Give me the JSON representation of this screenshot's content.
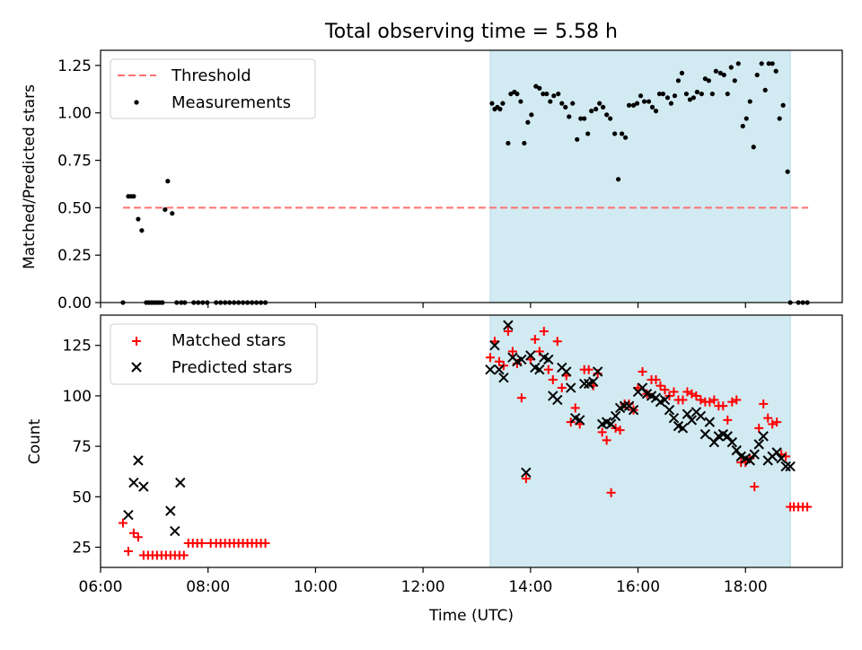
{
  "figure": {
    "title": "Total observing time = 5.58 h",
    "xlabel": "Time (UTC)",
    "highlight_color": "#add8e6"
  },
  "chart_data": [
    {
      "type": "scatter",
      "ylabel": "Matched/Predicted stars",
      "xlim": [
        "06:00",
        "19:48"
      ],
      "ylim": [
        0,
        1.33
      ],
      "grid": false,
      "legend_position": "upper-left",
      "x_ticks": [
        "06:00",
        "08:00",
        "10:00",
        "12:00",
        "14:00",
        "16:00",
        "18:00"
      ],
      "y_ticks": [
        "0.00",
        "0.25",
        "0.50",
        "0.75",
        "1.00",
        "1.25"
      ],
      "shaded_interval": [
        "13:15",
        "18:50"
      ],
      "threshold": {
        "name": "Threshold",
        "value": 0.5,
        "x_range": [
          "06:25",
          "19:10"
        ],
        "color": "#ff7070"
      },
      "series": [
        {
          "name": "Measurements",
          "color": "#000000",
          "x": [
            "06:25",
            "06:31",
            "06:34",
            "06:37",
            "06:42",
            "06:46",
            "06:51",
            "06:54",
            "06:57",
            "07:00",
            "07:03",
            "07:06",
            "07:09",
            "07:12",
            "07:15",
            "07:20",
            "07:25",
            "07:30",
            "07:34",
            "07:44",
            "07:49",
            "07:54",
            "07:59",
            "08:09",
            "08:14",
            "08:19",
            "08:24",
            "08:29",
            "08:34",
            "08:39",
            "08:44",
            "08:49",
            "08:54",
            "08:59",
            "09:04",
            "13:17",
            "13:20",
            "13:23",
            "13:26",
            "13:29",
            "13:35",
            "13:38",
            "13:42",
            "13:45",
            "13:49",
            "13:53",
            "13:57",
            "14:01",
            "14:06",
            "14:10",
            "14:14",
            "14:18",
            "14:22",
            "14:26",
            "14:31",
            "14:35",
            "14:39",
            "14:43",
            "14:47",
            "14:52",
            "14:56",
            "15:00",
            "15:04",
            "15:08",
            "15:13",
            "15:17",
            "15:21",
            "15:25",
            "15:29",
            "15:34",
            "15:38",
            "15:42",
            "15:46",
            "15:50",
            "15:55",
            "15:59",
            "16:03",
            "16:07",
            "16:12",
            "16:16",
            "16:20",
            "16:24",
            "16:28",
            "16:33",
            "16:37",
            "16:41",
            "16:45",
            "16:49",
            "16:54",
            "16:58",
            "17:02",
            "17:06",
            "17:11",
            "17:15",
            "17:19",
            "17:23",
            "17:27",
            "17:32",
            "17:36",
            "17:40",
            "17:44",
            "17:48",
            "17:52",
            "17:57",
            "18:01",
            "18:05",
            "18:09",
            "18:13",
            "18:18",
            "18:22",
            "18:26",
            "18:30",
            "18:34",
            "18:38",
            "18:42",
            "18:47",
            "18:50",
            "18:59",
            "19:04",
            "19:09"
          ],
          "y": [
            0.0,
            0.56,
            0.56,
            0.56,
            0.44,
            0.38,
            0.0,
            0.0,
            0.0,
            0.0,
            0.0,
            0.0,
            0.0,
            0.49,
            0.64,
            0.47,
            0.0,
            0.0,
            0.0,
            0.0,
            0.0,
            0.0,
            0.0,
            0.0,
            0.0,
            0.0,
            0.0,
            0.0,
            0.0,
            0.0,
            0.0,
            0.0,
            0.0,
            0.0,
            0.0,
            1.05,
            1.02,
            1.03,
            1.02,
            1.05,
            0.84,
            1.1,
            1.11,
            1.1,
            1.06,
            0.84,
            0.95,
            0.99,
            1.14,
            1.13,
            1.1,
            1.1,
            1.06,
            1.09,
            1.1,
            1.05,
            1.03,
            0.98,
            1.05,
            0.86,
            0.97,
            0.97,
            0.89,
            1.01,
            1.02,
            1.05,
            1.03,
            0.99,
            0.97,
            0.89,
            0.65,
            0.89,
            0.87,
            1.04,
            1.04,
            1.05,
            1.09,
            1.06,
            1.06,
            1.03,
            1.01,
            1.1,
            1.1,
            1.08,
            1.05,
            1.09,
            1.17,
            1.21,
            1.1,
            1.07,
            1.08,
            1.11,
            1.1,
            1.18,
            1.17,
            1.1,
            1.22,
            1.21,
            1.2,
            1.1,
            1.24,
            1.17,
            1.26,
            0.93,
            0.97,
            1.06,
            0.82,
            1.2,
            1.26,
            1.12,
            1.26,
            1.26,
            1.22,
            0.97,
            1.04,
            0.69,
            0.0,
            0.0,
            0.0,
            0.0
          ]
        }
      ]
    },
    {
      "type": "scatter",
      "ylabel": "Count",
      "xlim": [
        "06:00",
        "19:48"
      ],
      "ylim": [
        15,
        140
      ],
      "grid": false,
      "legend_position": "upper-left",
      "x_ticks": [
        "06:00",
        "08:00",
        "10:00",
        "12:00",
        "14:00",
        "16:00",
        "18:00"
      ],
      "y_ticks": [
        "25",
        "50",
        "75",
        "100",
        "125"
      ],
      "shaded_interval": [
        "13:15",
        "18:50"
      ],
      "series": [
        {
          "name": "Matched stars",
          "marker": "plus",
          "color": "#ff0000",
          "x": [
            "06:25",
            "06:31",
            "06:37",
            "06:42",
            "06:48",
            "06:53",
            "06:58",
            "07:03",
            "07:08",
            "07:13",
            "07:18",
            "07:23",
            "07:28",
            "07:33",
            "07:38",
            "07:43",
            "07:48",
            "07:53",
            "08:03",
            "08:09",
            "08:14",
            "08:19",
            "08:24",
            "08:29",
            "08:34",
            "08:39",
            "08:44",
            "08:49",
            "08:54",
            "08:59",
            "09:04",
            "13:15",
            "13:20",
            "13:25",
            "13:30",
            "13:35",
            "13:40",
            "13:45",
            "13:50",
            "13:55",
            "14:00",
            "14:05",
            "14:10",
            "14:15",
            "14:20",
            "14:25",
            "14:30",
            "14:35",
            "14:40",
            "14:45",
            "14:50",
            "14:55",
            "15:00",
            "15:05",
            "15:10",
            "15:15",
            "15:20",
            "15:25",
            "15:30",
            "15:35",
            "15:40",
            "15:45",
            "15:50",
            "15:55",
            "16:00",
            "16:05",
            "16:10",
            "16:15",
            "16:20",
            "16:25",
            "16:30",
            "16:35",
            "16:40",
            "16:45",
            "16:50",
            "16:55",
            "17:00",
            "17:05",
            "17:10",
            "17:15",
            "17:20",
            "17:25",
            "17:30",
            "17:35",
            "17:40",
            "17:45",
            "17:50",
            "17:55",
            "18:00",
            "18:05",
            "18:10",
            "18:15",
            "18:20",
            "18:25",
            "18:30",
            "18:35",
            "18:40",
            "18:45",
            "18:50",
            "18:54",
            "18:59",
            "19:04",
            "19:09"
          ],
          "y": [
            37,
            23,
            32,
            30,
            21,
            21,
            21,
            21,
            21,
            21,
            21,
            21,
            21,
            21,
            27,
            27,
            27,
            27,
            27,
            27,
            27,
            27,
            27,
            27,
            27,
            27,
            27,
            27,
            27,
            27,
            27,
            119,
            127,
            117,
            115,
            132,
            122,
            116,
            99,
            59,
            118,
            128,
            122,
            132,
            113,
            108,
            127,
            104,
            110,
            87,
            94,
            86,
            113,
            113,
            105,
            111,
            82,
            78,
            52,
            84,
            83,
            96,
            96,
            93,
            104,
            112,
            101,
            108,
            108,
            105,
            103,
            100,
            102,
            98,
            98,
            102,
            101,
            100,
            98,
            97,
            97,
            98,
            95,
            95,
            88,
            97,
            98,
            67,
            67,
            69,
            55,
            84,
            96,
            89,
            86,
            87,
            71,
            70,
            45,
            45,
            45,
            45,
            45
          ]
        },
        {
          "name": "Predicted stars",
          "marker": "x",
          "color": "#000000",
          "x": [
            "06:31",
            "06:37",
            "06:42",
            "06:48",
            "07:18",
            "07:23",
            "07:29",
            "13:15",
            "13:20",
            "13:25",
            "13:30",
            "13:35",
            "13:40",
            "13:45",
            "13:50",
            "13:55",
            "14:00",
            "14:05",
            "14:10",
            "14:15",
            "14:20",
            "14:25",
            "14:30",
            "14:35",
            "14:40",
            "14:45",
            "14:50",
            "14:55",
            "15:00",
            "15:05",
            "15:10",
            "15:15",
            "15:20",
            "15:25",
            "15:30",
            "15:35",
            "15:40",
            "15:45",
            "15:50",
            "15:55",
            "16:00",
            "16:05",
            "16:10",
            "16:15",
            "16:20",
            "16:25",
            "16:30",
            "16:35",
            "16:40",
            "16:45",
            "16:50",
            "16:55",
            "17:00",
            "17:05",
            "17:10",
            "17:15",
            "17:20",
            "17:25",
            "17:30",
            "17:35",
            "17:40",
            "17:45",
            "17:50",
            "17:55",
            "18:00",
            "18:05",
            "18:10",
            "18:15",
            "18:20",
            "18:25",
            "18:30",
            "18:35",
            "18:40",
            "18:45",
            "18:50"
          ],
          "y": [
            41,
            57,
            68,
            55,
            43,
            33,
            57,
            113,
            125,
            113,
            109,
            135,
            119,
            117,
            118,
            62,
            120,
            114,
            113,
            119,
            118,
            100,
            98,
            114,
            112,
            104,
            89,
            88,
            106,
            106,
            107,
            112,
            86,
            87,
            86,
            90,
            94,
            95,
            95,
            93,
            102,
            104,
            101,
            100,
            99,
            97,
            98,
            93,
            89,
            85,
            84,
            91,
            88,
            92,
            90,
            81,
            87,
            77,
            80,
            81,
            80,
            77,
            73,
            70,
            69,
            68,
            71,
            76,
            80,
            68,
            70,
            72,
            69,
            65,
            65
          ]
        }
      ]
    }
  ]
}
